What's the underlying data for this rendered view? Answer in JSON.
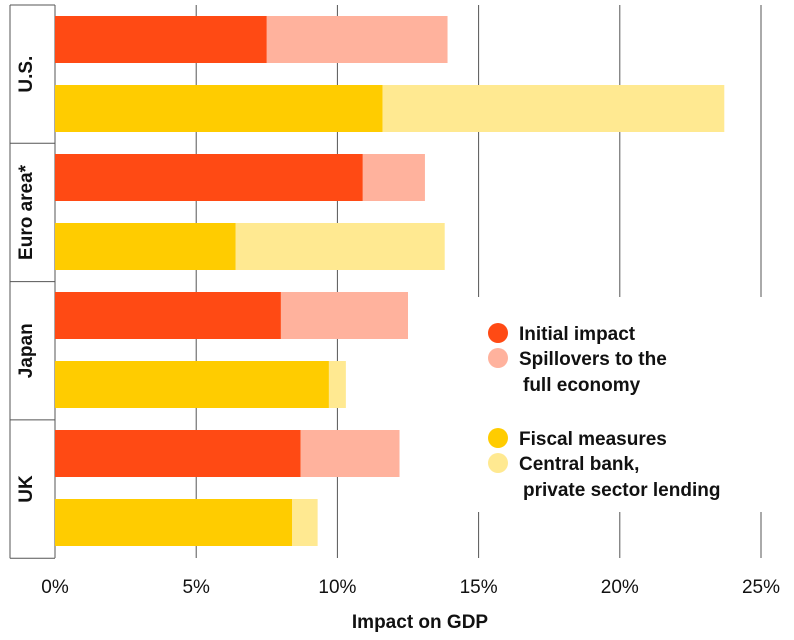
{
  "chart_data": {
    "type": "bar",
    "orientation": "horizontal",
    "stacked": true,
    "title": "",
    "xlabel": "Impact on GDP",
    "ylabel": "",
    "xlim": [
      0,
      25
    ],
    "x_ticks": [
      "0%",
      "5%",
      "10%",
      "15%",
      "20%",
      "25%"
    ],
    "grid": true,
    "legend_position": "right",
    "groups": [
      "U.S.",
      "Euro area*",
      "Japan",
      "UK"
    ],
    "bars": [
      {
        "group": "U.S.",
        "kind": "impact",
        "values": [
          7.5,
          6.4
        ]
      },
      {
        "group": "U.S.",
        "kind": "measures",
        "values": [
          11.6,
          12.1
        ]
      },
      {
        "group": "Euro area*",
        "kind": "impact",
        "values": [
          10.9,
          2.2
        ]
      },
      {
        "group": "Euro area*",
        "kind": "measures",
        "values": [
          6.4,
          7.4
        ]
      },
      {
        "group": "Japan",
        "kind": "impact",
        "values": [
          8.0,
          4.5
        ]
      },
      {
        "group": "Japan",
        "kind": "measures",
        "values": [
          9.7,
          0.6
        ]
      },
      {
        "group": "UK",
        "kind": "impact",
        "values": [
          8.7,
          3.5
        ]
      },
      {
        "group": "UK",
        "kind": "measures",
        "values": [
          8.4,
          0.9
        ]
      }
    ],
    "legend": [
      {
        "lines": [
          "Initial impact"
        ],
        "color": "#ff4a14"
      },
      {
        "lines": [
          "Spillovers to the",
          "full economy"
        ],
        "color": "#ffb29d"
      },
      {
        "lines": [
          "Fiscal measures"
        ],
        "color": "#ffcc00"
      },
      {
        "lines": [
          "Central bank,",
          "private sector lending"
        ],
        "color": "#ffe991"
      }
    ],
    "colors": {
      "impact": [
        "#ff4a14",
        "#ffb29d"
      ],
      "measures": [
        "#ffcc00",
        "#ffe991"
      ]
    }
  }
}
